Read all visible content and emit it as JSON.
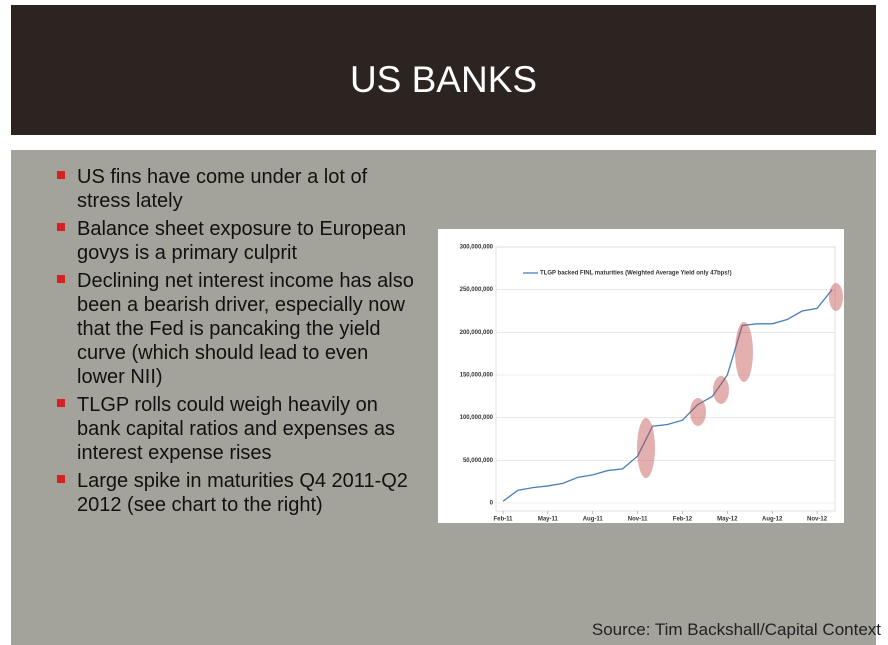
{
  "header": {
    "title": "US BANKS"
  },
  "bullets": [
    "US fins have come under a lot of stress lately",
    "Balance sheet exposure to European govys is a primary culprit",
    "Declining net interest income has also been a bearish driver, especially now that the Fed is pancaking the yield curve (which should lead to even lower NII)",
    "TLGP rolls could weigh heavily on bank capital ratios and expenses as interest expense rises",
    "Large spike in maturities Q4 2011-Q2 2012 (see chart to the right)"
  ],
  "source": "Source: Tim Backshall/Capital Context",
  "chart_data": {
    "type": "line",
    "x": [
      "2011-02",
      "2011-03",
      "2011-04",
      "2011-05",
      "2011-06",
      "2011-07",
      "2011-08",
      "2011-09",
      "2011-10",
      "2011-11",
      "2011-12",
      "2012-01",
      "2012-02",
      "2012-03",
      "2012-04",
      "2012-05",
      "2012-06",
      "2012-07",
      "2012-08",
      "2012-09",
      "2012-10",
      "2012-11",
      "2012-12"
    ],
    "series": [
      {
        "name": "TLGP backed FINL maturities (Weighted Average Yield only 47bps!)",
        "color": "#4a7ebb",
        "values": [
          2000000,
          15000000,
          18000000,
          20000000,
          23000000,
          30000000,
          33000000,
          38000000,
          40000000,
          55000000,
          90000000,
          92000000,
          97000000,
          115000000,
          125000000,
          150000000,
          208000000,
          210000000,
          210000000,
          215000000,
          225000000,
          228000000,
          250000000
        ]
      }
    ],
    "xlim": [
      "2011-02",
      "2012-12"
    ],
    "xticks": [
      {
        "value": "2011-02",
        "label": "Feb-11"
      },
      {
        "value": "2011-05",
        "label": "May-11"
      },
      {
        "value": "2011-08",
        "label": "Aug-11"
      },
      {
        "value": "2011-11",
        "label": "Nov-11"
      },
      {
        "value": "2012-02",
        "label": "Feb-12"
      },
      {
        "value": "2012-05",
        "label": "May-12"
      },
      {
        "value": "2012-08",
        "label": "Aug-12"
      },
      {
        "value": "2012-11",
        "label": "Nov-12"
      }
    ],
    "ylim": [
      0,
      300000000
    ],
    "yticks": [
      0,
      {
        "value": 50000000,
        "label": "50,000,000"
      },
      {
        "value": 100000000,
        "label": "100,000,000"
      },
      {
        "value": 150000000,
        "label": "150,000,000"
      },
      {
        "value": 200000000,
        "label": "200,000,000"
      },
      {
        "value": 250000000,
        "label": "250,000,000"
      },
      {
        "value": 300000000,
        "label": "300,000,000"
      }
    ],
    "grid": true
  }
}
